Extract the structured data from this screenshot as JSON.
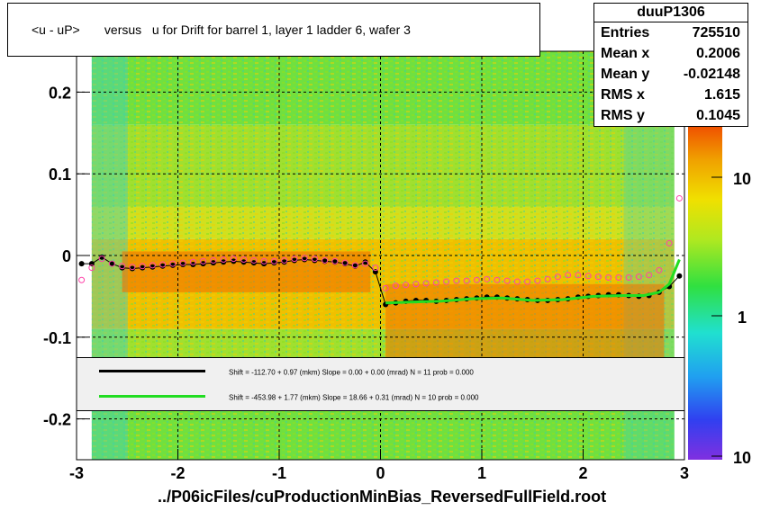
{
  "title": "<u - uP>       versus   u for Drift for barrel 1, layer 1 ladder 6, wafer 3",
  "footer": "../P06icFiles/cuProductionMinBias_ReversedFullField.root",
  "stats": {
    "name": "duuP1306",
    "rows": [
      {
        "key": "Entries",
        "value": "725510"
      },
      {
        "key": "Mean x",
        "value": "0.2006"
      },
      {
        "key": "Mean y",
        "value": "-0.02148"
      },
      {
        "key": "RMS x",
        "value": "1.615"
      },
      {
        "key": "RMS y",
        "value": "0.1045"
      }
    ]
  },
  "legend": [
    {
      "color": "#000000",
      "text": "Shift =  -112.70 + 0.97 (mkm) Slope =    0.00 + 0.00 (mrad)  N = 11 prob = 0.000"
    },
    {
      "color": "#22dd22",
      "text": "Shift =  -453.98 + 1.77 (mkm) Slope =    18.66 + 0.31 (mrad)  N = 10 prob = 0.000"
    }
  ],
  "chart_data": {
    "type": "heatmap",
    "title": "<u - uP>       versus   u for Drift for barrel 1, layer 1 ladder 6, wafer 3",
    "xlim": [
      -3,
      3
    ],
    "ylim": [
      -0.25,
      0.25
    ],
    "x_ticks": [
      -3,
      -2,
      -1,
      0,
      1,
      2,
      3
    ],
    "y_ticks": [
      -0.2,
      -0.1,
      0,
      0.1,
      0.2
    ],
    "y_tick_labels": [
      "-0.2",
      "-0.1",
      "0",
      "0.1",
      "0.2"
    ],
    "colorbar": {
      "scale": "log",
      "tick_labels": [
        "1",
        "10",
        "10"
      ]
    },
    "grid": true,
    "series": [
      {
        "name": "black",
        "color": "#000000",
        "x": [
          -2.95,
          -2.85,
          -2.75,
          -2.65,
          -2.55,
          -2.45,
          -2.35,
          -2.25,
          -2.15,
          -2.05,
          -1.95,
          -1.85,
          -1.75,
          -1.65,
          -1.55,
          -1.45,
          -1.35,
          -1.25,
          -1.15,
          -1.05,
          -0.95,
          -0.85,
          -0.75,
          -0.65,
          -0.55,
          -0.45,
          -0.35,
          -0.25,
          -0.15,
          -0.05,
          0.05,
          0.15,
          0.25,
          0.35,
          0.45,
          0.55,
          0.65,
          0.75,
          0.85,
          0.95,
          1.05,
          1.15,
          1.25,
          1.35,
          1.45,
          1.55,
          1.65,
          1.75,
          1.85,
          1.95,
          2.05,
          2.15,
          2.25,
          2.35,
          2.45,
          2.55,
          2.65,
          2.75,
          2.85,
          2.95
        ],
        "y": [
          -0.01,
          -0.01,
          -0.002,
          -0.01,
          -0.015,
          -0.016,
          -0.015,
          -0.014,
          -0.013,
          -0.012,
          -0.011,
          -0.011,
          -0.01,
          -0.009,
          -0.008,
          -0.007,
          -0.008,
          -0.009,
          -0.01,
          -0.009,
          -0.008,
          -0.006,
          -0.005,
          -0.006,
          -0.007,
          -0.008,
          -0.01,
          -0.013,
          -0.008,
          -0.02,
          -0.06,
          -0.058,
          -0.056,
          -0.055,
          -0.055,
          -0.056,
          -0.055,
          -0.054,
          -0.053,
          -0.052,
          -0.051,
          -0.051,
          -0.052,
          -0.053,
          -0.054,
          -0.055,
          -0.055,
          -0.054,
          -0.053,
          -0.051,
          -0.05,
          -0.049,
          -0.048,
          -0.048,
          -0.049,
          -0.05,
          -0.049,
          -0.045,
          -0.038,
          -0.025
        ]
      },
      {
        "name": "magenta",
        "color": "#ff44aa",
        "x": [
          -2.95,
          -2.85,
          -2.75,
          -2.65,
          -2.55,
          -2.45,
          -2.35,
          -2.25,
          -2.15,
          -2.05,
          -1.95,
          -1.85,
          -1.75,
          -1.65,
          -1.55,
          -1.45,
          -1.35,
          -1.25,
          -1.15,
          -1.05,
          -0.95,
          -0.85,
          -0.75,
          -0.65,
          -0.55,
          -0.45,
          -0.35,
          -0.25,
          -0.15,
          -0.05,
          0.05,
          0.15,
          0.25,
          0.35,
          0.45,
          0.55,
          0.65,
          0.75,
          0.85,
          0.95,
          1.05,
          1.15,
          1.25,
          1.35,
          1.45,
          1.55,
          1.65,
          1.75,
          1.85,
          1.95,
          2.05,
          2.15,
          2.25,
          2.35,
          2.45,
          2.55,
          2.65,
          2.75,
          2.85,
          2.95
        ],
        "y": [
          -0.03,
          -0.015,
          -0.004,
          -0.01,
          -0.013,
          -0.014,
          -0.013,
          -0.012,
          -0.011,
          -0.01,
          -0.009,
          -0.008,
          -0.007,
          -0.006,
          -0.005,
          -0.004,
          -0.005,
          -0.006,
          -0.007,
          -0.007,
          -0.006,
          -0.004,
          -0.003,
          -0.004,
          -0.006,
          -0.007,
          -0.009,
          -0.012,
          -0.01,
          -0.015,
          -0.04,
          -0.037,
          -0.036,
          -0.035,
          -0.034,
          -0.033,
          -0.032,
          -0.031,
          -0.031,
          -0.03,
          -0.029,
          -0.03,
          -0.031,
          -0.032,
          -0.032,
          -0.031,
          -0.029,
          -0.026,
          -0.024,
          -0.024,
          -0.025,
          -0.026,
          -0.027,
          -0.027,
          -0.027,
          -0.026,
          -0.024,
          -0.018,
          0.015,
          0.07
        ]
      },
      {
        "name": "green-fit",
        "color": "#22dd22",
        "x": [
          0.05,
          0.3,
          0.6,
          0.9,
          1.2,
          1.5,
          1.8,
          2.1,
          2.4,
          2.6,
          2.75,
          2.85,
          2.95
        ],
        "y": [
          -0.058,
          -0.057,
          -0.056,
          -0.053,
          -0.052,
          -0.055,
          -0.054,
          -0.05,
          -0.049,
          -0.049,
          -0.045,
          -0.035,
          -0.005
        ]
      }
    ]
  }
}
